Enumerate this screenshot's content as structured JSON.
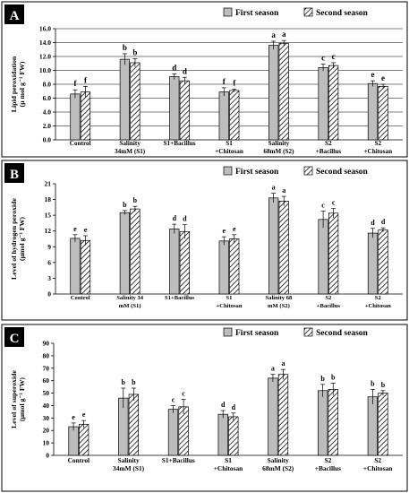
{
  "colors": {
    "first_fill": "#bdbdbd",
    "second_hatch": "#000000",
    "panel_label_bg": "#000000",
    "panel_label_fg": "#ffffff"
  },
  "chart_data": [
    {
      "panel": "A",
      "type": "bar",
      "ylabel_lines": [
        "Lipid peroxidation",
        "(µ mol g⁻¹ FW)"
      ],
      "ylim": [
        0,
        16
      ],
      "yticks": [
        "0.0",
        "2.0",
        "4.0",
        "6.0",
        "8.0",
        "10.0",
        "12.0",
        "14.0",
        "16.0"
      ],
      "grid": true,
      "legend_position": "top-right",
      "categories": [
        [
          "Control"
        ],
        [
          "Salinity",
          "34mM (S1)"
        ],
        [
          "S1+Bacillus"
        ],
        [
          "S1",
          "+Chitosan"
        ],
        [
          "Salinity",
          "68mM (S2)"
        ],
        [
          "S2",
          "+Bacillus"
        ],
        [
          "S2",
          "+Chitosan"
        ]
      ],
      "series": [
        {
          "name": "First season",
          "values": [
            6.6,
            11.6,
            9.1,
            6.9,
            13.6,
            10.4,
            8.1
          ],
          "errors": [
            0.6,
            0.8,
            0.4,
            0.6,
            0.6,
            0.5,
            0.4
          ],
          "letters": [
            "f",
            "b",
            "d",
            "f",
            "a",
            "c",
            "e"
          ]
        },
        {
          "name": "Second season",
          "values": [
            6.9,
            11.1,
            8.5,
            7.1,
            13.9,
            10.7,
            7.7
          ],
          "errors": [
            0.8,
            0.6,
            0.5,
            0.2,
            0.4,
            0.4,
            0.3
          ],
          "letters": [
            "f",
            "b",
            "d",
            "f",
            "a",
            "c",
            "e"
          ]
        }
      ]
    },
    {
      "panel": "B",
      "type": "bar",
      "ylabel_lines": [
        "Level of hydrogen peroxide",
        "(µmol g⁻¹ FW)"
      ],
      "ylim": [
        0,
        21
      ],
      "yticks": [
        "0",
        "3",
        "6",
        "9",
        "12",
        "15",
        "18",
        "21"
      ],
      "grid": false,
      "legend_position": "top-right",
      "categories": [
        [
          "Control"
        ],
        [
          "Salinity 34",
          "mM (S1)"
        ],
        [
          "S1+Bacillus"
        ],
        [
          "S1",
          "+Chitosan"
        ],
        [
          "Salinity 68",
          "mM (S2)"
        ],
        [
          "S2",
          "+Bacillus"
        ],
        [
          "S2",
          "+Chitosan"
        ]
      ],
      "series": [
        {
          "name": "First season",
          "values": [
            10.6,
            15.5,
            12.4,
            10.1,
            18.3,
            14.2,
            11.6
          ],
          "errors": [
            0.7,
            0.4,
            0.9,
            0.8,
            0.9,
            1.6,
            0.9
          ],
          "letters": [
            "e",
            "b",
            "d",
            "e",
            "a",
            "c",
            "d"
          ]
        },
        {
          "name": "Second season",
          "values": [
            10.2,
            16.2,
            11.9,
            10.5,
            17.7,
            15.4,
            12.2
          ],
          "errors": [
            0.9,
            0.5,
            1.3,
            0.8,
            0.9,
            0.9,
            0.4
          ],
          "letters": [
            "e",
            "b",
            "d",
            "e",
            "a",
            "c",
            "d"
          ]
        }
      ]
    },
    {
      "panel": "C",
      "type": "bar",
      "ylabel_lines": [
        "Level of superoxide",
        "(µmol g⁻¹ FW)"
      ],
      "ylim": [
        0,
        90
      ],
      "yticks": [
        "0",
        "10",
        "20",
        "30",
        "40",
        "50",
        "60",
        "70",
        "80",
        "90"
      ],
      "grid": false,
      "legend_position": "top-right",
      "categories": [
        [
          "Control"
        ],
        [
          "Salinity",
          "34mM (S1)"
        ],
        [
          "S1+Bacillus"
        ],
        [
          "S1",
          "+Chitosan"
        ],
        [
          "Salinity",
          "68mM (S2)"
        ],
        [
          "S2",
          "+Bacillus"
        ],
        [
          "S2",
          "+Chitosan"
        ]
      ],
      "series": [
        {
          "name": "First season",
          "values": [
            23,
            46,
            37,
            33,
            62,
            52,
            47
          ],
          "errors": [
            3,
            8,
            3,
            3,
            3,
            5,
            6
          ],
          "letters": [
            "e",
            "b",
            "c",
            "d",
            "a",
            "b",
            "b"
          ]
        },
        {
          "name": "Second season",
          "values": [
            25,
            49,
            39,
            31,
            65,
            53,
            50
          ],
          "errors": [
            3,
            5,
            6,
            3,
            4,
            5,
            2
          ],
          "letters": [
            "e",
            "b",
            "c",
            "d",
            "a",
            "b",
            "b"
          ]
        }
      ]
    }
  ]
}
